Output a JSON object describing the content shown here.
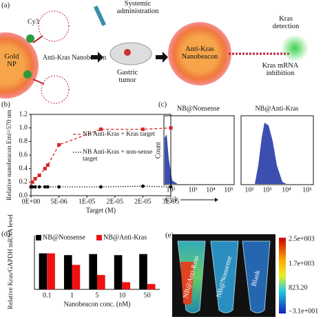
{
  "panel_a": {
    "label": "(a)",
    "dye": "Cy3",
    "particle": "Gold NP",
    "probe": "Anti-Kras Nanobeacon",
    "step": "Systemic administration",
    "tumor": "Gastric tumor",
    "probe_in_tumor": "Anti-Kras Nanobeacon",
    "detection": "Kras detection",
    "inhibition": "Kras mRNA inhibition"
  },
  "panel_c": {
    "label": "(c)",
    "y_label": "Count",
    "x_label": "Cy3",
    "plots": [
      {
        "title": "NB@Nonsense",
        "ticks": [
          "10²",
          "10³",
          "10⁴",
          "10⁵"
        ]
      },
      {
        "title": "NB@Anti-Kras",
        "ticks": [
          "10²",
          "10³",
          "10⁴",
          "10⁵"
        ]
      }
    ]
  },
  "panel_e": {
    "label": "(e)",
    "tubes": [
      "NB@Anti-Kras",
      "NB@Nonsense",
      "Blank"
    ],
    "colorbar_ticks": [
      "2.5e+003",
      "1.7e+003",
      "823.20",
      "−3.1e+001"
    ]
  },
  "chart_data": [
    {
      "type": "line",
      "panel_label": "(b)",
      "y_label": "Relative nanobeacon Emi=570 nm",
      "x_label": "Target (M)",
      "x": [
        0,
        2.5e-07,
        7.5e-07,
        1.5e-06,
        2.5e-06,
        3e-06,
        5e-06,
        1.25e-05,
        2e-05,
        2.5e-05
      ],
      "series": [
        {
          "name": "NB Anti-Kras + Kras target",
          "color": "#d42424",
          "dash": "4,3",
          "values": [
            0.13,
            0.2,
            0.25,
            0.3,
            0.4,
            0.45,
            0.75,
            0.98,
            0.98,
            1.0
          ]
        },
        {
          "name": "NB Anti-Kras + non-sense target",
          "color": "#111111",
          "dash": "1.5,2",
          "values": [
            0.13,
            0.13,
            0.13,
            0.13,
            0.13,
            0.13,
            0.13,
            0.13,
            0.14,
            0.13
          ]
        }
      ],
      "xlim": [
        0,
        2.5e-05
      ],
      "xticks": [
        {
          "value": 0,
          "label": "0E+00"
        },
        {
          "value": 5e-06,
          "label": "5E-06"
        },
        {
          "value": 1e-05,
          "label": "1E-05"
        },
        {
          "value": 1.5e-05,
          "label": "2E-05"
        },
        {
          "value": 2e-05,
          "label": "2E-05"
        },
        {
          "value": 2.5e-05,
          "label": "3E-05"
        }
      ],
      "ylim": [
        0,
        1.2
      ],
      "yticks": [
        {
          "value": 0,
          "label": "0.0"
        },
        0.2,
        0.4,
        0.6,
        0.8,
        {
          "value": 1,
          "label": "1.0"
        },
        1.2
      ]
    },
    {
      "type": "bar",
      "panel_label": "(d)",
      "y_label": "Relative Kras/GAPDH mRNA level",
      "x_label": "Nanobeacon conc. (nM)",
      "categories": [
        "0.1",
        "1",
        "5",
        "10",
        "50"
      ],
      "series": [
        {
          "name": "NB@Nonsense",
          "color": "#000000",
          "values": [
            1.0,
            0.95,
            0.98,
            0.95,
            0.98
          ]
        },
        {
          "name": "NB@Anti-Kras",
          "color": "#ee1111",
          "values": [
            1.0,
            0.68,
            0.4,
            0.2,
            0.15
          ]
        }
      ],
      "ylim": [
        0,
        1.3
      ]
    }
  ]
}
